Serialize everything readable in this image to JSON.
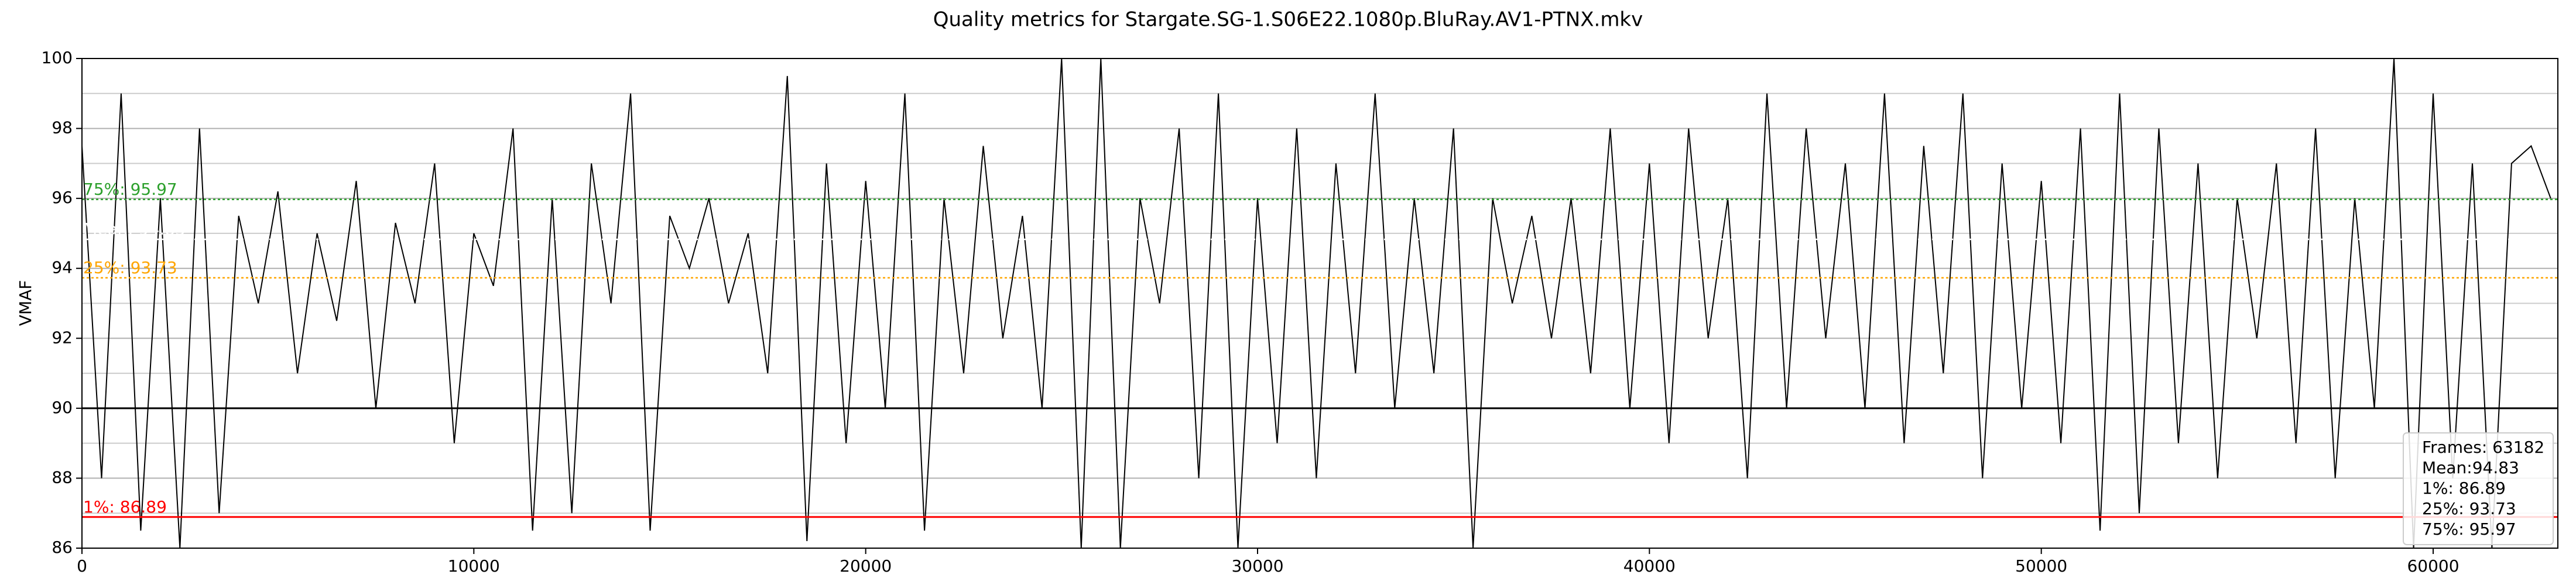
{
  "chart_data": {
    "type": "line",
    "title": "Quality metrics for Stargate.SG-1.S06E22.1080p.BluRay.AV1-PTNX.mkv",
    "ylabel": "VMAF",
    "color": "#000000",
    "x": [
      0,
      500,
      1000,
      1500,
      2000,
      2500,
      3000,
      3500,
      4000,
      4500,
      5000,
      5500,
      6000,
      6500,
      7000,
      7500,
      8000,
      8500,
      9000,
      9500,
      10000,
      10500,
      11000,
      11500,
      12000,
      12500,
      13000,
      13500,
      14000,
      14500,
      15000,
      15500,
      16000,
      16500,
      17000,
      17500,
      18000,
      18500,
      19000,
      19500,
      20000,
      20500,
      21000,
      21500,
      22000,
      22500,
      23000,
      23500,
      24000,
      24500,
      25000,
      25500,
      26000,
      26500,
      27000,
      27500,
      28000,
      28500,
      29000,
      29500,
      30000,
      30500,
      31000,
      31500,
      32000,
      32500,
      33000,
      33500,
      34000,
      34500,
      35000,
      35500,
      36000,
      36500,
      37000,
      37500,
      38000,
      38500,
      39000,
      39500,
      40000,
      40500,
      41000,
      41500,
      42000,
      42500,
      43000,
      43500,
      44000,
      44500,
      45000,
      45500,
      46000,
      46500,
      47000,
      47500,
      48000,
      48500,
      49000,
      49500,
      50000,
      50500,
      51000,
      51500,
      52000,
      52500,
      53000,
      53500,
      54000,
      54500,
      55000,
      55500,
      56000,
      56500,
      57000,
      57500,
      58000,
      58500,
      59000,
      59500,
      60000,
      60500,
      61000,
      61500,
      62000,
      62500,
      63000
    ],
    "values": [
      97.5,
      88,
      99,
      86.5,
      96,
      86,
      98,
      87,
      95.5,
      93,
      96.2,
      91,
      95,
      92.5,
      96.5,
      90,
      95.3,
      93,
      97,
      89,
      95,
      93.5,
      98,
      86.5,
      96,
      87,
      97,
      93,
      99,
      86.5,
      95.5,
      94,
      96,
      93,
      95,
      91,
      99.5,
      86.2,
      97,
      89,
      96.5,
      90,
      99,
      86.5,
      96,
      91,
      97.5,
      92,
      95.5,
      90,
      100,
      86,
      100,
      86,
      96,
      93,
      98,
      88,
      99,
      86,
      96,
      89,
      98,
      88,
      97,
      91,
      99,
      90,
      96,
      91,
      98,
      86,
      96,
      93,
      95.5,
      92,
      96,
      91,
      98,
      90,
      97,
      89,
      98,
      92,
      96,
      88,
      99,
      90,
      98,
      92,
      97,
      90,
      99,
      89,
      97.5,
      91,
      99,
      88,
      97,
      90,
      96.5,
      89,
      98,
      86.5,
      99,
      87,
      98,
      89,
      97,
      88,
      96,
      92,
      97,
      89,
      98,
      88,
      96,
      90,
      100,
      86,
      99,
      88,
      97,
      86,
      97,
      97.5,
      96
    ],
    "xlim": [
      0,
      63182
    ],
    "ylim": [
      86,
      100
    ],
    "xticks": [
      0,
      10000,
      20000,
      30000,
      40000,
      50000,
      60000
    ],
    "yticks": [
      86,
      88,
      90,
      92,
      94,
      96,
      98,
      100
    ],
    "yminorticks": [
      87,
      89,
      91,
      93,
      95,
      97,
      99
    ],
    "grid": true,
    "reference_lines": [
      {
        "value": 95.97,
        "label": "75%: 95.97",
        "color": "#2ca02c",
        "style": "dotted"
      },
      {
        "value": 94.83,
        "label": "Mean: 94.83",
        "color": "#ffffff",
        "style": "dotted"
      },
      {
        "value": 93.73,
        "label": "25%: 93.73",
        "color": "#ffa500",
        "style": "dotted"
      },
      {
        "value": 86.89,
        "label": "1%: 86.89",
        "color": "#ff0000",
        "style": "solid"
      },
      {
        "value": 90,
        "color": "#000000",
        "style": "solid"
      }
    ],
    "stats_box": [
      "Frames: 63182",
      "Mean:94.83",
      "1%: 86.89",
      "25%: 93.73",
      "75%: 95.97"
    ]
  }
}
